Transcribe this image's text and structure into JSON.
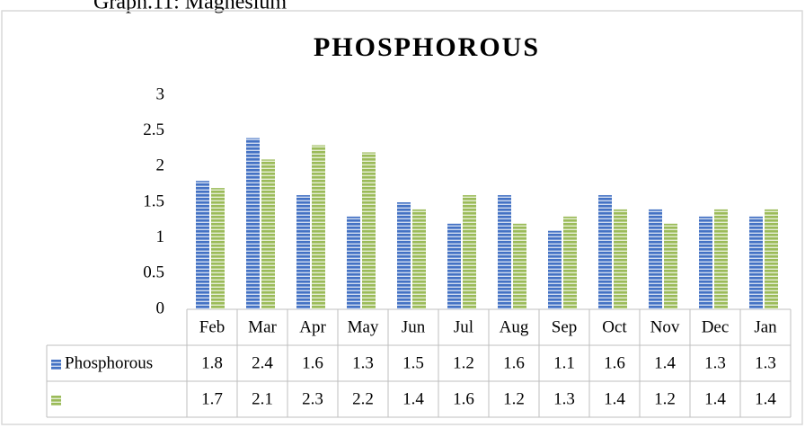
{
  "caption": "Graph.11: Magnesium",
  "chart_data": {
    "type": "bar",
    "title": "PHOSPHOROUS",
    "categories": [
      "Feb",
      "Mar",
      "Apr",
      "May",
      "Jun",
      "Jul",
      "Aug",
      "Sep",
      "Oct",
      "Nov",
      "Dec",
      "Jan"
    ],
    "series": [
      {
        "name": "Phosphorous",
        "color": "#4472c4",
        "values": [
          1.8,
          2.4,
          1.6,
          1.3,
          1.5,
          1.2,
          1.6,
          1.1,
          1.6,
          1.4,
          1.3,
          1.3
        ]
      },
      {
        "color": "#9bbb59",
        "values": [
          1.7,
          2.1,
          2.3,
          2.2,
          1.4,
          1.6,
          1.2,
          1.3,
          1.4,
          1.2,
          1.4,
          1.4
        ]
      }
    ],
    "ylim": [
      0,
      3
    ],
    "yticks": [
      0,
      0.5,
      1,
      1.5,
      2,
      2.5,
      3
    ]
  }
}
